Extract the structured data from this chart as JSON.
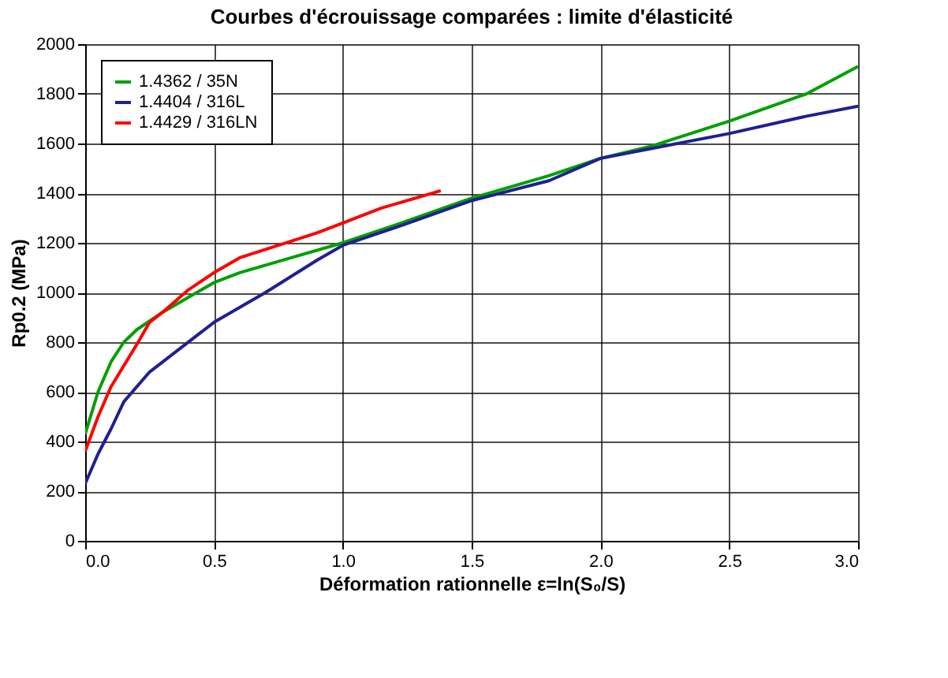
{
  "chart_data": {
    "type": "line",
    "title": "Courbes d'écrouissage comparées : limite d'élasticité",
    "xlabel": "Déformation rationnelle ε=ln(S₀/S)",
    "ylabel": "Rp0.2 (MPa)",
    "xlim": [
      0,
      3
    ],
    "xticks": [
      {
        "value": 0,
        "label": "0.0"
      },
      0.5,
      {
        "value": 1,
        "label": "1.0"
      },
      1.5,
      {
        "value": 2,
        "label": "2.0"
      },
      2.5,
      {
        "value": 3,
        "label": "3.0"
      }
    ],
    "ylim": [
      0,
      2000
    ],
    "yticks": [
      0,
      200,
      400,
      600,
      800,
      1000,
      1200,
      1400,
      1600,
      1800,
      2000
    ],
    "grid": true,
    "legend": "top left",
    "marker": "none",
    "line_style": "solid",
    "series": [
      {
        "name": "1.4362 / 35N",
        "color": "#00a000",
        "x": [
          0,
          0.05,
          0.1,
          0.15,
          0.2,
          0.3,
          0.4,
          0.5,
          0.6,
          0.8,
          1.0,
          1.2,
          1.5,
          1.8,
          2.0,
          2.2,
          2.5,
          2.8,
          3.0
        ],
        "values": [
          430,
          600,
          720,
          800,
          850,
          920,
          980,
          1040,
          1080,
          1140,
          1200,
          1270,
          1380,
          1470,
          1540,
          1590,
          1690,
          1800,
          1910
        ]
      },
      {
        "name": "1.4404 / 316L",
        "color": "#202090",
        "x": [
          0,
          0.05,
          0.1,
          0.15,
          0.25,
          0.35,
          0.5,
          0.7,
          0.9,
          1.0,
          1.2,
          1.5,
          1.8,
          2.0,
          2.2,
          2.5,
          2.8,
          3.0
        ],
        "values": [
          230,
          350,
          450,
          560,
          680,
          760,
          880,
          1000,
          1130,
          1190,
          1260,
          1370,
          1450,
          1540,
          1580,
          1640,
          1710,
          1750
        ]
      },
      {
        "name": "1.4429 / 316LN",
        "color": "#ff0000",
        "x": [
          0,
          0.05,
          0.1,
          0.2,
          0.25,
          0.3,
          0.4,
          0.5,
          0.6,
          0.75,
          0.9,
          1.0,
          1.15,
          1.25,
          1.38
        ],
        "values": [
          360,
          500,
          620,
          790,
          880,
          920,
          1010,
          1080,
          1140,
          1190,
          1240,
          1280,
          1340,
          1370,
          1410
        ]
      }
    ]
  }
}
